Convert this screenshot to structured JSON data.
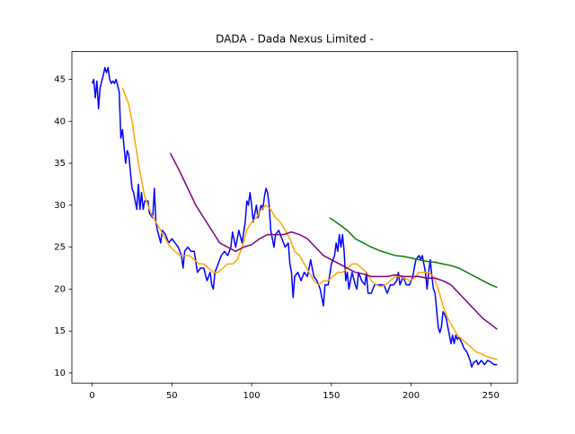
{
  "chart_data": {
    "type": "line",
    "title": "DADA - Dada Nexus Limited -",
    "xlim": [
      -12.7,
      266.7
    ],
    "ylim": [
      8.8,
      48.3
    ],
    "xticks": [
      0,
      50,
      100,
      150,
      200,
      250
    ],
    "yticks": [
      10,
      15,
      20,
      25,
      30,
      35,
      40,
      45
    ],
    "series": [
      {
        "color": "#0000ff",
        "x": [
          0,
          1,
          2,
          3,
          4,
          5,
          7,
          8,
          9,
          10,
          11,
          12,
          13,
          14,
          15,
          17,
          18,
          19,
          20,
          21,
          22,
          23,
          24,
          25,
          26,
          28,
          29,
          30,
          31,
          32,
          33,
          35,
          36,
          38,
          39,
          40,
          41,
          43,
          44,
          46,
          48,
          50,
          52,
          54,
          56,
          57,
          58,
          60,
          62,
          64,
          66,
          68,
          70,
          72,
          74,
          75,
          76,
          77,
          79,
          81,
          83,
          85,
          87,
          88,
          90,
          92,
          94,
          96,
          97,
          98,
          99,
          100,
          101,
          102,
          103,
          104,
          106,
          107,
          108,
          109,
          110,
          111,
          112,
          113,
          114,
          115,
          117,
          119,
          121,
          123,
          124,
          125,
          126,
          127,
          129,
          131,
          133,
          135,
          137,
          139,
          141,
          143,
          145,
          146,
          148,
          150,
          152,
          153,
          154,
          155,
          156,
          157,
          158,
          159,
          160,
          161,
          163,
          165,
          166,
          167,
          169,
          171,
          172,
          173,
          175,
          177,
          179,
          181,
          183,
          185,
          187,
          189,
          191,
          192,
          193,
          195,
          197,
          199,
          201,
          203,
          205,
          206,
          207,
          209,
          210,
          211,
          212,
          213,
          214,
          215,
          216,
          217,
          218,
          219,
          220,
          221,
          222,
          223,
          225,
          226,
          227,
          228,
          229,
          230,
          232,
          233,
          235,
          237,
          238,
          239,
          241,
          242,
          244,
          246,
          248,
          250,
          252,
          254
        ],
        "values": [
          44.5,
          45,
          42.8,
          44.8,
          41.5,
          44,
          45.5,
          46.4,
          45.8,
          46.4,
          45,
          44.5,
          44.8,
          44.5,
          45,
          43.5,
          38,
          39,
          37,
          35,
          36.5,
          36,
          34,
          32,
          31.5,
          29.5,
          32.5,
          29.5,
          31.5,
          29.5,
          30.5,
          30.5,
          29,
          28.5,
          32,
          28,
          27,
          25.5,
          27,
          26.5,
          25.5,
          26,
          25.5,
          25,
          24,
          22.5,
          24.5,
          25,
          24.5,
          24.5,
          22,
          22.5,
          22.5,
          21,
          22,
          20.5,
          20,
          22,
          23,
          24,
          24.5,
          24,
          25,
          26.8,
          25,
          27,
          25.5,
          28,
          30.5,
          30,
          31.5,
          30,
          28,
          29,
          30,
          28.5,
          30,
          29.5,
          31,
          32,
          31.5,
          30,
          27,
          26,
          25,
          26.5,
          27,
          26,
          25,
          25.5,
          23,
          22,
          19,
          21.5,
          22,
          21,
          22,
          21.5,
          23.5,
          21.5,
          21,
          20,
          18,
          20.5,
          20.5,
          23,
          24,
          25.5,
          24.5,
          26.5,
          25,
          26.5,
          24.5,
          21,
          22,
          20,
          22,
          20.5,
          20,
          22,
          21,
          20.5,
          22,
          19.5,
          19.5,
          20.5,
          20.5,
          20.5,
          20.5,
          19.5,
          20.5,
          20.5,
          21,
          22,
          20.5,
          21.5,
          20.5,
          20.5,
          21.5,
          23.5,
          24,
          23.5,
          24,
          22,
          20,
          22,
          23.5,
          21.5,
          20,
          19.5,
          17.5,
          15.5,
          14.8,
          15.5,
          17.3,
          17,
          16.5,
          15.5,
          13.5,
          14.5,
          13.5,
          14.5,
          14,
          14.3,
          13.5,
          13,
          12.5,
          11.5,
          10.7,
          11.2,
          11.5,
          11,
          11.5,
          11,
          11.5,
          11.3,
          11,
          11
        ]
      },
      {
        "color": "#ffa500",
        "x": [
          19,
          21,
          23,
          25,
          27,
          29,
          31,
          33,
          35,
          37,
          40,
          43,
          46,
          49,
          52,
          55,
          58,
          61,
          64,
          67,
          70,
          73,
          76,
          79,
          82,
          85,
          88,
          91,
          94,
          97,
          100,
          103,
          106,
          109,
          112,
          115,
          118,
          121,
          124,
          127,
          130,
          133,
          136,
          139,
          142,
          145,
          148,
          151,
          154,
          157,
          160,
          163,
          166,
          169,
          172,
          175,
          178,
          181,
          184,
          187,
          190,
          193,
          196,
          199,
          202,
          205,
          208,
          211,
          214,
          217,
          220,
          223,
          226,
          229,
          232,
          235,
          238,
          241,
          244,
          247,
          250,
          254
        ],
        "values": [
          44,
          43,
          42,
          40,
          37.5,
          35,
          33,
          31,
          30,
          29,
          28,
          27,
          26,
          25,
          24.5,
          24,
          24,
          24,
          23.5,
          23,
          23,
          22.5,
          22,
          22,
          22.5,
          23,
          23,
          23.5,
          25,
          27,
          28,
          28.5,
          29.5,
          30,
          29.5,
          28.5,
          28,
          27,
          26,
          24.5,
          24,
          23,
          22,
          21,
          20.5,
          21,
          21,
          21.5,
          22,
          22,
          22.5,
          23,
          23,
          22.5,
          22,
          21,
          20.5,
          20.3,
          20.5,
          21,
          21.5,
          21.5,
          21.3,
          21,
          21.3,
          22,
          22,
          22,
          21.5,
          20,
          18,
          16.5,
          15.5,
          14.5,
          14,
          13.5,
          13,
          12.5,
          12.3,
          12,
          11.8,
          11.6
        ]
      },
      {
        "color": "#800080",
        "x": [
          49,
          55,
          60,
          65,
          70,
          75,
          80,
          85,
          90,
          95,
          100,
          105,
          110,
          115,
          120,
          125,
          130,
          135,
          140,
          145,
          150,
          155,
          160,
          165,
          170,
          175,
          180,
          185,
          190,
          195,
          200,
          205,
          210,
          215,
          220,
          225,
          230,
          235,
          240,
          245,
          250,
          254
        ],
        "values": [
          36.2,
          34,
          32,
          30,
          28.5,
          27,
          25.5,
          25,
          24.5,
          25,
          25.3,
          26,
          26.5,
          26.5,
          26.5,
          26.8,
          26.5,
          26,
          25,
          24,
          23.5,
          23,
          22.5,
          22,
          21.8,
          21.5,
          21.5,
          21.5,
          21.7,
          21.5,
          21.5,
          21.5,
          21.3,
          21.3,
          21,
          20.5,
          19.5,
          18.5,
          17.5,
          16.5,
          15.8,
          15.2
        ]
      },
      {
        "color": "#008000",
        "x": [
          149,
          155,
          160,
          165,
          170,
          175,
          180,
          185,
          190,
          195,
          200,
          205,
          210,
          215,
          220,
          225,
          230,
          235,
          240,
          245,
          250,
          254
        ],
        "values": [
          28.5,
          27.7,
          27,
          26,
          25.5,
          25,
          24.6,
          24.3,
          24,
          23.9,
          23.7,
          23.5,
          23.3,
          23.2,
          23,
          22.8,
          22.5,
          22,
          21.5,
          21,
          20.5,
          20.2
        ]
      }
    ]
  }
}
